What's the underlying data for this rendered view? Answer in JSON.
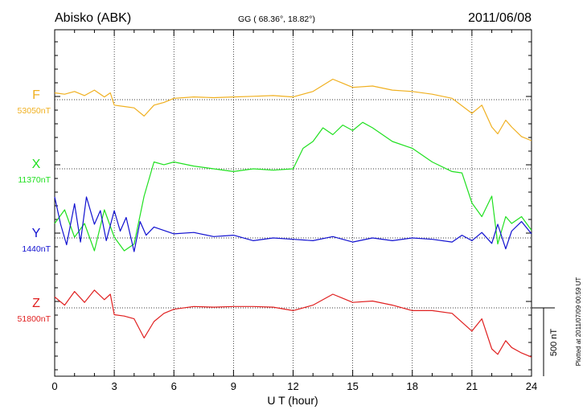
{
  "header": {
    "station": "Abisko (ABK)",
    "coords": "GG ( 68.36°,  18.82°)",
    "date": "2011/06/08"
  },
  "footer": {
    "plotted": "Plotted at 2011/07/09 00:59 UT"
  },
  "chart_data": {
    "type": "line",
    "xlabel": "U T (hour)",
    "xlim": [
      0,
      24
    ],
    "x_ticks": [
      "0",
      "3",
      "6",
      "9",
      "12",
      "15",
      "18",
      "21",
      "24"
    ],
    "scale_bar": "500 nT",
    "grid": "dotted vertical every 3 h, dotted baseline per series",
    "series": [
      {
        "name": "F",
        "baseline_label": "53050nT",
        "color": "#f0b020",
        "x": [
          0,
          0.5,
          1,
          1.5,
          2,
          2.5,
          2.8,
          3,
          3.5,
          4,
          4.5,
          5,
          5.5,
          6,
          7,
          8,
          9,
          10,
          11,
          12,
          13,
          14,
          14.5,
          15,
          16,
          17,
          18,
          19,
          20,
          21,
          21.5,
          22,
          22.3,
          22.7,
          23,
          23.5,
          24
        ],
        "y": [
          50,
          40,
          60,
          30,
          70,
          20,
          50,
          -40,
          -50,
          -60,
          -120,
          -40,
          -20,
          10,
          20,
          15,
          20,
          25,
          30,
          20,
          60,
          150,
          120,
          90,
          100,
          70,
          60,
          40,
          10,
          -100,
          -40,
          -200,
          -250,
          -150,
          -200,
          -270,
          -300
        ]
      },
      {
        "name": "X",
        "baseline_label": "11370nT",
        "color": "#20e020",
        "x": [
          0,
          0.5,
          1,
          1.5,
          2,
          2.5,
          3,
          3.5,
          4,
          4.5,
          5,
          5.5,
          6,
          7,
          8,
          9,
          10,
          11,
          12,
          12.5,
          13,
          13.5,
          14,
          14.5,
          15,
          15.5,
          16,
          17,
          18,
          19,
          20,
          20.5,
          21,
          21.5,
          22,
          22.3,
          22.7,
          23,
          23.5,
          24
        ],
        "y": [
          -400,
          -300,
          -500,
          -400,
          -600,
          -300,
          -500,
          -600,
          -550,
          -200,
          50,
          30,
          50,
          20,
          0,
          -20,
          0,
          -10,
          0,
          150,
          200,
          300,
          250,
          320,
          280,
          340,
          300,
          200,
          150,
          50,
          -20,
          -30,
          -250,
          -350,
          -200,
          -550,
          -350,
          -400,
          -350,
          -450
        ]
      },
      {
        "name": "Y",
        "baseline_label": "1440nT",
        "color": "#1010d0",
        "x": [
          0,
          0.3,
          0.6,
          1,
          1.3,
          1.6,
          2,
          2.3,
          2.6,
          3,
          3.3,
          3.6,
          4,
          4.3,
          4.6,
          5,
          6,
          7,
          8,
          9,
          10,
          11,
          12,
          13,
          14,
          15,
          16,
          17,
          18,
          19,
          20,
          20.5,
          21,
          21.5,
          22,
          22.3,
          22.7,
          23,
          23.5,
          24
        ],
        "y": [
          300,
          100,
          -50,
          250,
          -30,
          300,
          100,
          200,
          -20,
          200,
          50,
          150,
          -100,
          120,
          20,
          80,
          30,
          40,
          10,
          20,
          -20,
          0,
          -10,
          -20,
          10,
          -30,
          0,
          -20,
          0,
          -10,
          -30,
          20,
          -20,
          40,
          -40,
          100,
          -80,
          50,
          120,
          30
        ]
      },
      {
        "name": "Z",
        "baseline_label": "51800nT",
        "color": "#e02020",
        "x": [
          0,
          0.5,
          1,
          1.5,
          2,
          2.5,
          2.8,
          3,
          3.5,
          4,
          4.5,
          5,
          5.5,
          6,
          7,
          8,
          9,
          10,
          11,
          12,
          13,
          14,
          14.5,
          15,
          16,
          17,
          18,
          19,
          20,
          21,
          21.5,
          22,
          22.3,
          22.7,
          23,
          23.5,
          24
        ],
        "y": [
          80,
          20,
          120,
          40,
          130,
          60,
          100,
          -50,
          -60,
          -80,
          -220,
          -100,
          -40,
          -10,
          10,
          5,
          10,
          10,
          5,
          -20,
          20,
          100,
          70,
          40,
          50,
          20,
          -20,
          -20,
          -40,
          -170,
          -80,
          -300,
          -340,
          -240,
          -290,
          -330,
          -360
        ]
      }
    ]
  }
}
